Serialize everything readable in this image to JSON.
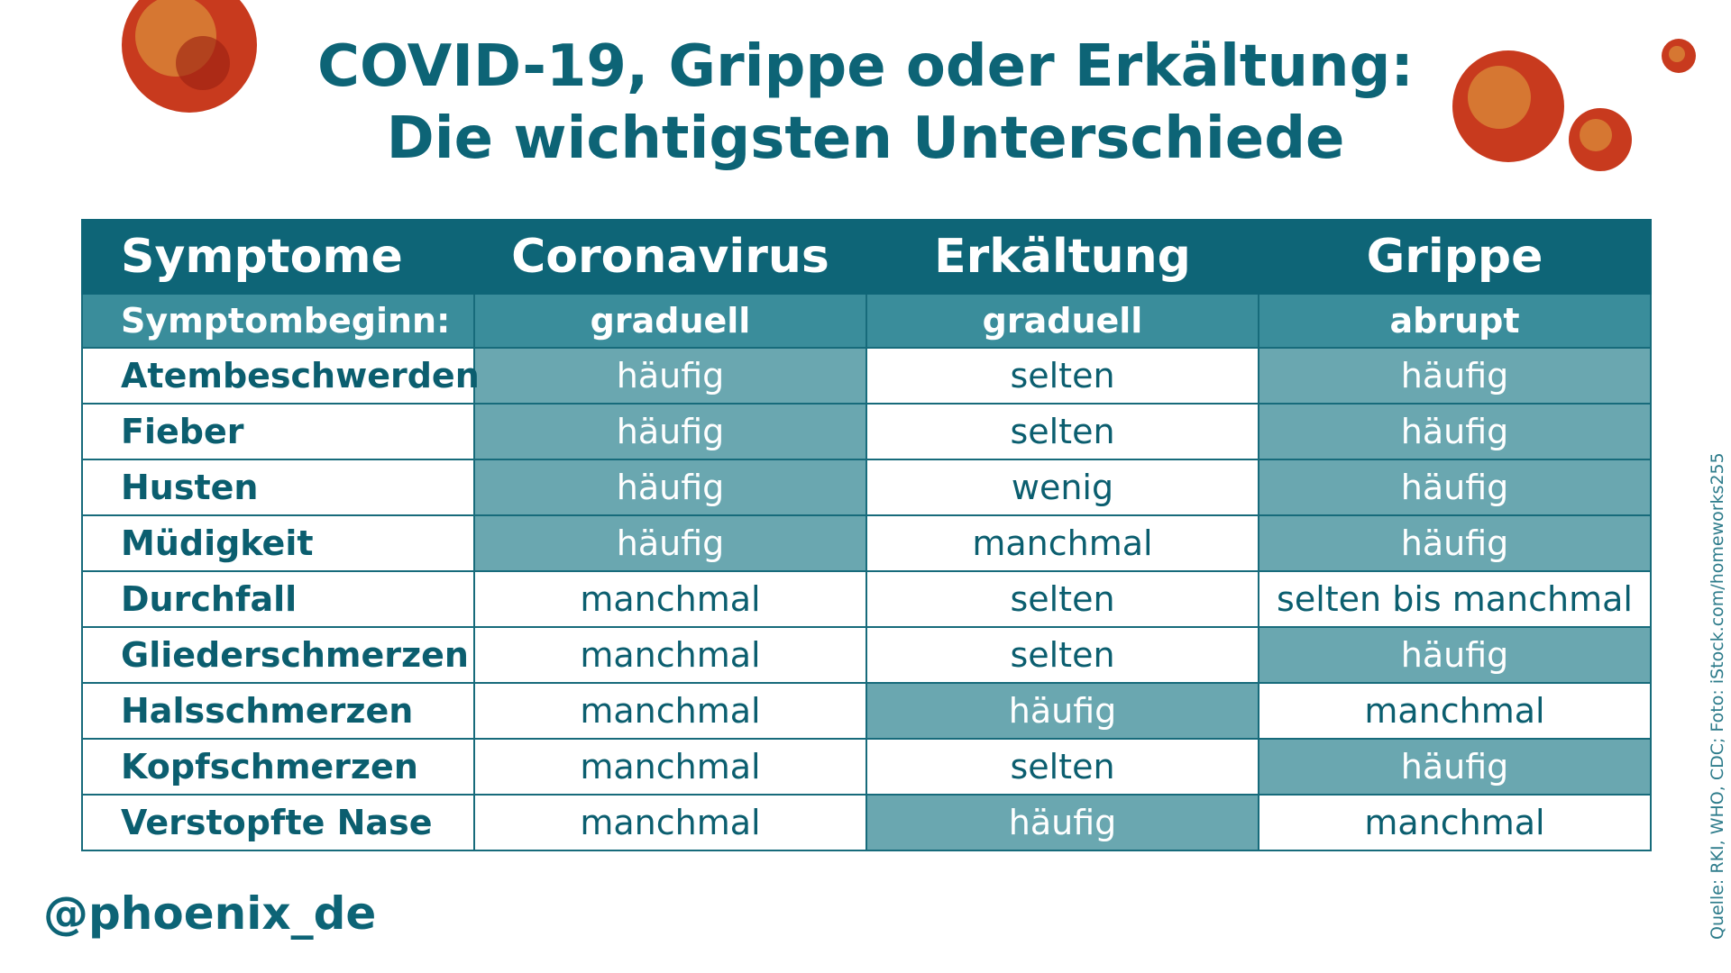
{
  "header": {
    "title_line1": "COVID-19, Grippe oder Erkältung:",
    "title_line2": "Die wichtigsten Unterschiede"
  },
  "table": {
    "columns": [
      "Symptome",
      "Coronavirus",
      "Erkältung",
      "Grippe"
    ],
    "onset": [
      "Symptombeginn:",
      "graduell",
      "graduell",
      "abrupt"
    ],
    "rows": [
      [
        "Atembeschwerden",
        "häufig",
        "selten",
        "häufig"
      ],
      [
        "Fieber",
        "häufig",
        "selten",
        "häufig"
      ],
      [
        "Husten",
        "häufig",
        "wenig",
        "häufig"
      ],
      [
        "Müdigkeit",
        "häufig",
        "manchmal",
        "häufig"
      ],
      [
        "Durchfall",
        "manchmal",
        "selten",
        "selten bis manchmal"
      ],
      [
        "Gliederschmerzen",
        "manchmal",
        "selten",
        "häufig"
      ],
      [
        "Halsschmerzen",
        "manchmal",
        "häufig",
        "manchmal"
      ],
      [
        "Kopfschmerzen",
        "manchmal",
        "selten",
        "häufig"
      ],
      [
        "Verstopfte Nase",
        "manchmal",
        "häufig",
        "manchmal"
      ]
    ]
  },
  "footer": {
    "handle": "@phoenix_de",
    "source": "Quelle: RKI, WHO, CDC; Foto: iStock.com/homeworks255"
  }
}
